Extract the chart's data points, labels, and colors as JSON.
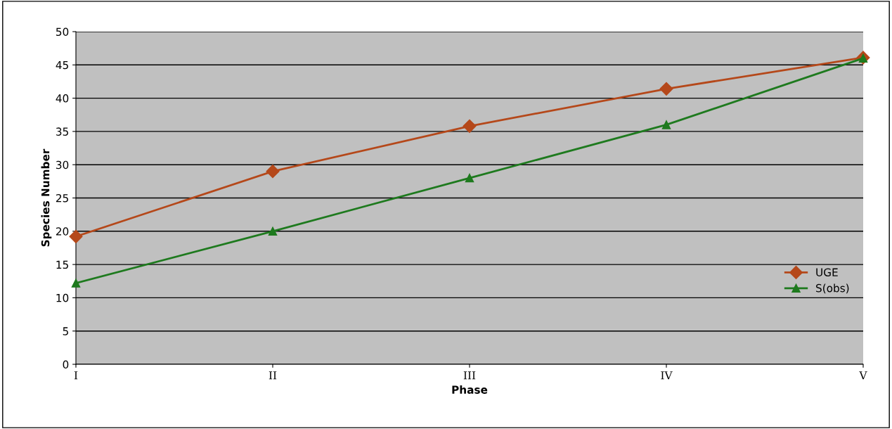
{
  "chart_data": {
    "type": "line",
    "xlabel": "Phase",
    "ylabel": "Species Number",
    "categories": [
      "I",
      "II",
      "III",
      "IV",
      "V"
    ],
    "series": [
      {
        "name": "UGE",
        "color": "#b5481a",
        "marker": "diamond",
        "values": [
          19.2,
          29,
          35.8,
          41.4,
          46.1
        ]
      },
      {
        "name": "S(obs)",
        "color": "#1e7a1e",
        "marker": "triangle",
        "values": [
          12.2,
          20,
          28,
          36,
          46
        ]
      }
    ],
    "ylim": [
      0,
      50
    ],
    "yticks": [
      0,
      5,
      10,
      15,
      20,
      25,
      30,
      35,
      40,
      45,
      50
    ],
    "grid": "y",
    "legend": "right",
    "line_style": "solid"
  }
}
